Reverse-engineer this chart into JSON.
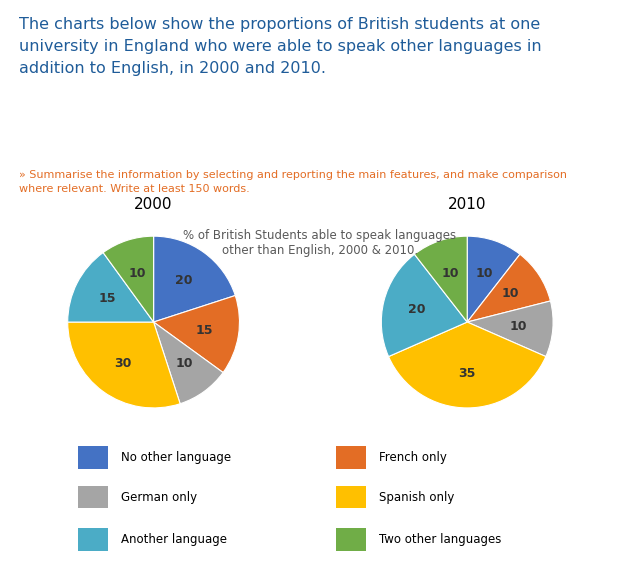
{
  "title_main": "The charts below show the proportions of British students at one\nuniversity in England who were able to speak other languages in\naddition to English, in 2000 and 2010.",
  "subtitle": "» Summarise the information by selecting and reporting the main features, and make comparison\nwhere relevant. Write at least 150 words.",
  "chart_title": "% of British Students able to speak languages\nother than English, 2000 & 2010.",
  "year_2000": "2000",
  "year_2010": "2010",
  "categories": [
    "No other language",
    "French only",
    "German only",
    "Spanish only",
    "Another language",
    "Two other languages"
  ],
  "colors": [
    "#4472C4",
    "#E36D25",
    "#A5A5A5",
    "#FFC000",
    "#4BACC6",
    "#70AD47"
  ],
  "values_2000": [
    20,
    15,
    10,
    30,
    15,
    10
  ],
  "values_2010": [
    10,
    10,
    10,
    35,
    20,
    10
  ],
  "title_color": "#1F5C99",
  "subtitle_color": "#E36D25",
  "chart_title_color": "#595959",
  "background_color": "#FFFFFF",
  "title_fontsize": 11.5,
  "subtitle_fontsize": 8.0,
  "chart_title_fontsize": 8.5,
  "label_fontsize": 9,
  "legend_fontsize": 8.5,
  "year_fontsize": 11
}
